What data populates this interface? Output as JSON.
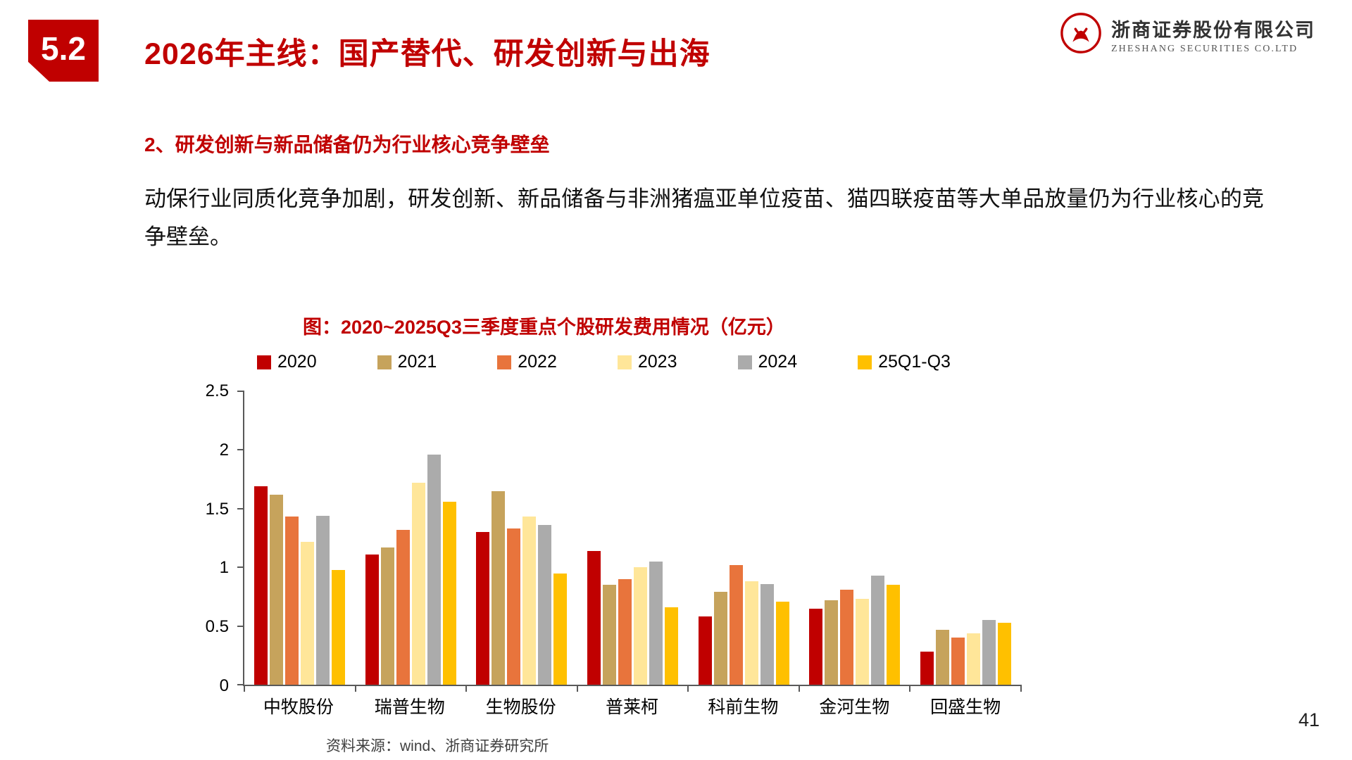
{
  "badge": {
    "label": "5.2"
  },
  "header": {
    "title": "2026年主线：国产替代、研发创新与出海"
  },
  "logo": {
    "company_cn": "浙商证券股份有限公司",
    "company_en": "ZHESHANG SECURITIES CO.LTD",
    "brand_color": "#C00000"
  },
  "section": {
    "heading": "2、研发创新与新品储备仍为行业核心竞争壁垒"
  },
  "body": {
    "paragraph": "动保行业同质化竞争加剧，研发创新、新品储备与非洲猪瘟亚单位疫苗、猫四联疫苗等大单品放量仍为行业核心的竞争壁垒。"
  },
  "chart": {
    "title": "图：2020~2025Q3三季度重点个股研发费用情况（亿元）",
    "source": "资料来源：wind、浙商证券研究所"
  },
  "page_number": "41",
  "chart_data": {
    "type": "bar",
    "title": "图：2020~2025Q3三季度重点个股研发费用情况（亿元）",
    "categories": [
      "中牧股份",
      "瑞普生物",
      "生物股份",
      "普莱柯",
      "科前生物",
      "金河生物",
      "回盛生物"
    ],
    "series": [
      {
        "name": "2020",
        "color": "#C00000",
        "values": [
          1.69,
          1.11,
          1.3,
          1.14,
          0.58,
          0.65,
          0.28
        ]
      },
      {
        "name": "2021",
        "color": "#C6A35C",
        "values": [
          1.62,
          1.17,
          1.65,
          0.85,
          0.79,
          0.72,
          0.47
        ]
      },
      {
        "name": "2022",
        "color": "#E8743C",
        "values": [
          1.43,
          1.32,
          1.33,
          0.9,
          1.02,
          0.81,
          0.4
        ]
      },
      {
        "name": "2023",
        "color": "#FFE699",
        "values": [
          1.22,
          1.72,
          1.43,
          1.0,
          0.88,
          0.73,
          0.44
        ]
      },
      {
        "name": "2024",
        "color": "#ABABAB",
        "values": [
          1.44,
          1.96,
          1.36,
          1.05,
          0.86,
          0.93,
          0.55
        ]
      },
      {
        "name": "25Q1-Q3",
        "color": "#FFC000",
        "values": [
          0.98,
          1.56,
          0.95,
          0.66,
          0.71,
          0.85,
          0.53
        ]
      }
    ],
    "ylim": [
      0,
      2.5
    ],
    "yticks": [
      0,
      0.5,
      1,
      1.5,
      2,
      2.5
    ],
    "grid": false,
    "legend_position": "top",
    "xlabel": "",
    "ylabel": ""
  }
}
